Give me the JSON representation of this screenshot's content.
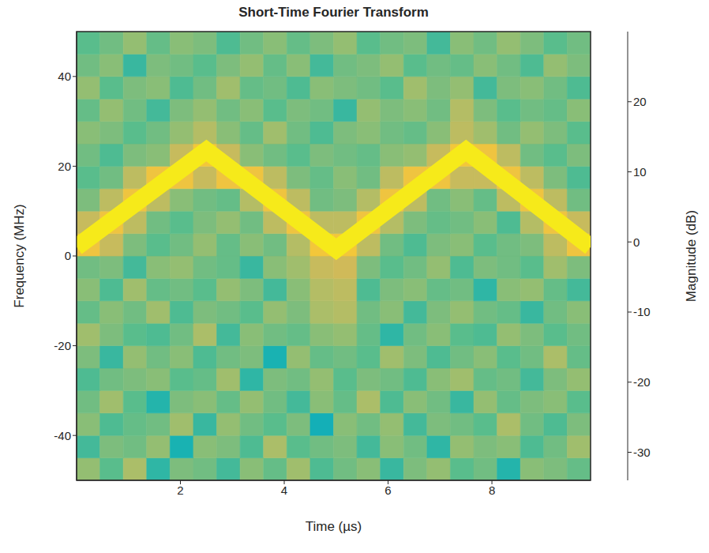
{
  "chart_data": {
    "type": "heatmap",
    "title": "Short-Time Fourier Transform",
    "xlabel": "Time (µs)",
    "ylabel": "Frequency (MHz)",
    "xlim": [
      0,
      9.9
    ],
    "xticks": [
      2,
      4,
      6,
      8
    ],
    "ylim": [
      -50,
      50
    ],
    "yticks": [
      -40,
      -20,
      0,
      20,
      40
    ],
    "time_edges": [
      0,
      0.45,
      0.9,
      1.35,
      1.8,
      2.25,
      2.7,
      3.15,
      3.6,
      4.05,
      4.5,
      4.95,
      5.4,
      5.85,
      6.3,
      6.75,
      7.2,
      7.65,
      8.1,
      8.55,
      9,
      9.45,
      9.9
    ],
    "frequency_edges": [
      -50,
      -45,
      -40,
      -35,
      -30,
      -25,
      -20,
      -15,
      -10,
      -5,
      0,
      5,
      10,
      15,
      20,
      25,
      30,
      35,
      40,
      45,
      50
    ],
    "magnitude": [
      [
        3,
        -2,
        5,
        -6,
        1,
        0,
        -4,
        2,
        -1,
        4,
        -3,
        0,
        2,
        -5,
        1,
        3,
        -2,
        0,
        -7,
        2,
        1,
        -1
      ],
      [
        -4,
        1,
        0,
        3,
        -8,
        2,
        1,
        -3,
        5,
        -2,
        0,
        1,
        -4,
        2,
        0,
        -6,
        3,
        1,
        2,
        -3,
        0,
        4
      ],
      [
        2,
        -3,
        -1,
        0,
        4,
        -5,
        3,
        0,
        -2,
        1,
        -9,
        2,
        0,
        3,
        -4,
        1,
        0,
        -2,
        5,
        0,
        -3,
        1
      ],
      [
        0,
        4,
        -2,
        -7,
        1,
        2,
        -1,
        3,
        0,
        -4,
        2,
        -1,
        5,
        -3,
        2,
        0,
        -5,
        3,
        -1,
        1,
        2,
        -2
      ],
      [
        -3,
        0,
        1,
        2,
        -2,
        -1,
        4,
        -6,
        1,
        0,
        3,
        -2,
        1,
        0,
        -3,
        2,
        4,
        -1,
        0,
        -4,
        1,
        3
      ],
      [
        1,
        -5,
        3,
        0,
        2,
        -3,
        0,
        1,
        -8,
        3,
        -1,
        0,
        -2,
        4,
        1,
        -3,
        0,
        2,
        -2,
        0,
        5,
        -1
      ],
      [
        4,
        1,
        -2,
        -3,
        0,
        5,
        -4,
        2,
        0,
        -1,
        2,
        3,
        -1,
        -6,
        0,
        2,
        -2,
        -3,
        3,
        1,
        -2,
        0
      ],
      [
        -1,
        2,
        0,
        4,
        -3,
        1,
        0,
        -2,
        3,
        1,
        5,
        6,
        0,
        2,
        -4,
        1,
        3,
        0,
        -1,
        -5,
        0,
        2
      ],
      [
        2,
        -3,
        4,
        -1,
        0,
        -2,
        3,
        1,
        -4,
        2,
        6,
        7,
        -3,
        1,
        2,
        -1,
        0,
        -6,
        2,
        3,
        -1,
        -4
      ],
      [
        0,
        1,
        -4,
        2,
        3,
        0,
        -1,
        -5,
        2,
        4,
        8,
        9,
        1,
        -2,
        0,
        3,
        -3,
        1,
        0,
        -2,
        4,
        1
      ],
      [
        14,
        8,
        1,
        -2,
        0,
        3,
        -1,
        2,
        0,
        6,
        15,
        15,
        7,
        0,
        -3,
        1,
        2,
        -2,
        0,
        1,
        7,
        14
      ],
      [
        8,
        14,
        7,
        0,
        -2,
        1,
        3,
        0,
        7,
        14,
        7,
        7,
        14,
        6,
        1,
        -1,
        0,
        2,
        -3,
        6,
        14,
        8
      ],
      [
        1,
        7,
        14,
        7,
        2,
        0,
        -1,
        6,
        14,
        7,
        0,
        1,
        6,
        14,
        7,
        0,
        2,
        -1,
        7,
        14,
        7,
        0
      ],
      [
        -2,
        0,
        7,
        14,
        14,
        8,
        14,
        14,
        7,
        1,
        -1,
        2,
        0,
        7,
        14,
        14,
        8,
        8,
        14,
        7,
        1,
        -3
      ],
      [
        0,
        -3,
        1,
        2,
        8,
        15,
        8,
        2,
        0,
        -2,
        1,
        0,
        -1,
        2,
        3,
        8,
        15,
        14,
        7,
        0,
        -2,
        1
      ],
      [
        2,
        1,
        -2,
        0,
        3,
        6,
        2,
        -1,
        4,
        0,
        -3,
        1,
        2,
        0,
        -1,
        2,
        7,
        4,
        0,
        3,
        1,
        -2
      ],
      [
        -1,
        3,
        0,
        -4,
        1,
        3,
        0,
        2,
        -2,
        1,
        0,
        -5,
        3,
        1,
        2,
        0,
        6,
        1,
        -2,
        0,
        -1,
        2
      ],
      [
        3,
        -2,
        1,
        2,
        -3,
        0,
        4,
        -1,
        0,
        -3,
        2,
        1,
        0,
        -2,
        4,
        1,
        3,
        -4,
        1,
        2,
        0,
        -3
      ],
      [
        0,
        2,
        -5,
        1,
        0,
        -2,
        1,
        3,
        -1,
        2,
        -4,
        0,
        1,
        3,
        -2,
        0,
        -1,
        2,
        0,
        -3,
        3,
        1
      ],
      [
        -2,
        0,
        3,
        -1,
        2,
        1,
        -3,
        0,
        2,
        -1,
        1,
        3,
        -2,
        0,
        1,
        -4,
        2,
        0,
        3,
        1,
        -2,
        0
      ]
    ],
    "ridge": {
      "x": [
        0,
        2.5,
        5,
        7.5,
        9.9
      ],
      "y": [
        2,
        23.5,
        1.5,
        23.5,
        2
      ],
      "magnitude": 25
    },
    "colorbar": {
      "label": "Magnitude (dB)",
      "range": [
        -34,
        30
      ],
      "ticks": [
        -30,
        -20,
        -10,
        0,
        10,
        20
      ]
    }
  }
}
